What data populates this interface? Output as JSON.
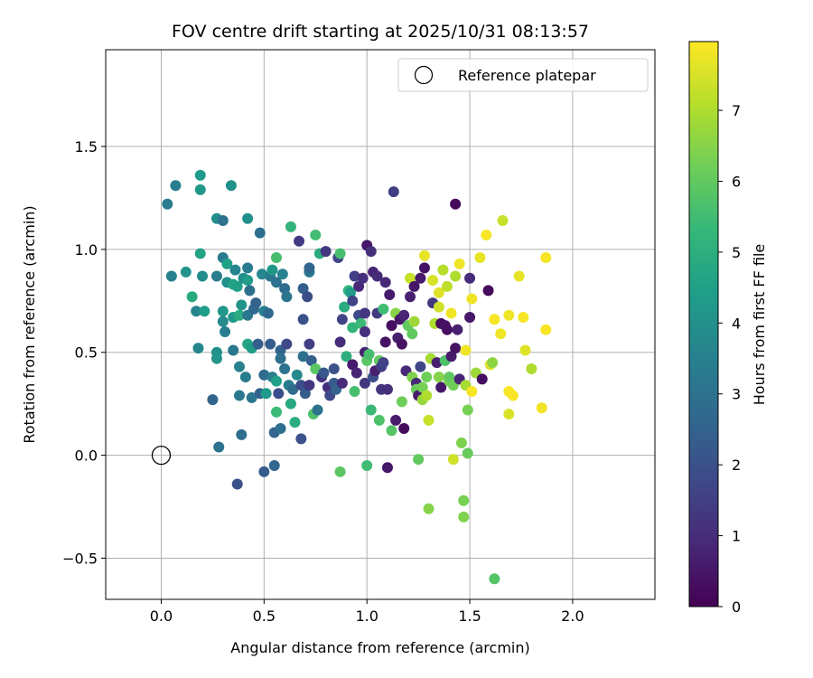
{
  "chart_data": {
    "type": "scatter",
    "title": "FOV centre drift starting at 2025/10/31 08:13:57",
    "xlabel": "Angular distance from reference (arcmin)",
    "ylabel": "Rotation from reference (arcmin)",
    "xlim": [
      -0.27,
      2.4
    ],
    "ylim": [
      -0.7,
      1.97
    ],
    "xticks": [
      0.0,
      0.5,
      1.0,
      1.5,
      2.0
    ],
    "xtick_labels": [
      "0.0",
      "0.5",
      "1.0",
      "1.5",
      "2.0"
    ],
    "yticks": [
      -0.5,
      0.0,
      0.5,
      1.0,
      1.5
    ],
    "ytick_labels": [
      "−0.5",
      "0.0",
      "0.5",
      "1.0",
      "1.5"
    ],
    "grid": true,
    "legend": {
      "position": "top-right",
      "entries": [
        "Reference platepar"
      ]
    },
    "reference_point": {
      "x": 0.0,
      "y": 0.0,
      "label": "Reference platepar"
    },
    "colorbar": {
      "label": "Hours from first FF file",
      "range": [
        0,
        7.97
      ],
      "ticks": [
        0,
        1,
        2,
        3,
        4,
        5,
        6,
        7
      ],
      "tick_labels": [
        "0",
        "1",
        "2",
        "3",
        "4",
        "5",
        "6",
        "7"
      ],
      "colormap": "viridis"
    },
    "colormap_stops": [
      "#440154",
      "#482878",
      "#3e4989",
      "#31688e",
      "#26828e",
      "#1f9e89",
      "#35b779",
      "#6ece58",
      "#b5de2b",
      "#fde725"
    ],
    "points": [
      {
        "x": 0.03,
        "y": 1.22,
        "t": 3.3
      },
      {
        "x": 0.07,
        "y": 1.31,
        "t": 3.4
      },
      {
        "x": 0.05,
        "y": 0.87,
        "t": 3.5
      },
      {
        "x": 0.12,
        "y": 0.89,
        "t": 4.1
      },
      {
        "x": 0.15,
        "y": 0.77,
        "t": 4.8
      },
      {
        "x": 0.19,
        "y": 1.36,
        "t": 4.3
      },
      {
        "x": 0.19,
        "y": 1.29,
        "t": 4.2
      },
      {
        "x": 0.19,
        "y": 0.98,
        "t": 4.6
      },
      {
        "x": 0.2,
        "y": 0.87,
        "t": 3.9
      },
      {
        "x": 0.17,
        "y": 0.7,
        "t": 3.6
      },
      {
        "x": 0.21,
        "y": 0.7,
        "t": 4.4
      },
      {
        "x": 0.18,
        "y": 0.52,
        "t": 3.7
      },
      {
        "x": 0.25,
        "y": 0.27,
        "t": 2.6
      },
      {
        "x": 0.27,
        "y": 1.15,
        "t": 3.9
      },
      {
        "x": 0.27,
        "y": 0.87,
        "t": 3.4
      },
      {
        "x": 0.27,
        "y": 0.5,
        "t": 4.0
      },
      {
        "x": 0.27,
        "y": 0.47,
        "t": 4.1
      },
      {
        "x": 0.28,
        "y": 0.04,
        "t": 3.0
      },
      {
        "x": 0.3,
        "y": 1.14,
        "t": 3.0
      },
      {
        "x": 0.3,
        "y": 0.96,
        "t": 3.3
      },
      {
        "x": 0.3,
        "y": 0.7,
        "t": 4.2
      },
      {
        "x": 0.3,
        "y": 0.65,
        "t": 3.8
      },
      {
        "x": 0.31,
        "y": 0.6,
        "t": 3.4
      },
      {
        "x": 0.32,
        "y": 0.93,
        "t": 4.5
      },
      {
        "x": 0.32,
        "y": 0.84,
        "t": 4.0
      },
      {
        "x": 0.34,
        "y": 1.31,
        "t": 4.0
      },
      {
        "x": 0.35,
        "y": 0.83,
        "t": 4.6
      },
      {
        "x": 0.35,
        "y": 0.67,
        "t": 4.3
      },
      {
        "x": 0.35,
        "y": 0.51,
        "t": 3.2
      },
      {
        "x": 0.36,
        "y": 0.9,
        "t": 3.6
      },
      {
        "x": 0.37,
        "y": 0.82,
        "t": 4.5
      },
      {
        "x": 0.38,
        "y": 0.68,
        "t": 4.9
      },
      {
        "x": 0.37,
        "y": -0.14,
        "t": 2.0
      },
      {
        "x": 0.38,
        "y": 0.43,
        "t": 3.5
      },
      {
        "x": 0.38,
        "y": 0.29,
        "t": 3.2
      },
      {
        "x": 0.39,
        "y": 0.73,
        "t": 4.1
      },
      {
        "x": 0.39,
        "y": 0.1,
        "t": 2.8
      },
      {
        "x": 0.4,
        "y": 0.86,
        "t": 3.9
      },
      {
        "x": 0.41,
        "y": 0.38,
        "t": 3.3
      },
      {
        "x": 0.42,
        "y": 1.15,
        "t": 4.0
      },
      {
        "x": 0.42,
        "y": 0.91,
        "t": 3.3
      },
      {
        "x": 0.42,
        "y": 0.85,
        "t": 4.4
      },
      {
        "x": 0.42,
        "y": 0.68,
        "t": 3.2
      },
      {
        "x": 0.42,
        "y": 0.54,
        "t": 4.7
      },
      {
        "x": 0.43,
        "y": 0.8,
        "t": 2.9
      },
      {
        "x": 0.44,
        "y": 0.52,
        "t": 4.4
      },
      {
        "x": 0.44,
        "y": 0.28,
        "t": 3.1
      },
      {
        "x": 0.45,
        "y": 0.71,
        "t": 2.7
      },
      {
        "x": 0.46,
        "y": 0.74,
        "t": 2.5
      },
      {
        "x": 0.47,
        "y": 0.54,
        "t": 2.4
      },
      {
        "x": 0.48,
        "y": 1.08,
        "t": 2.9
      },
      {
        "x": 0.48,
        "y": 0.3,
        "t": 2.5
      },
      {
        "x": 0.49,
        "y": 0.88,
        "t": 3.7
      },
      {
        "x": 0.5,
        "y": 0.7,
        "t": 3.5
      },
      {
        "x": 0.5,
        "y": 0.39,
        "t": 2.8
      },
      {
        "x": 0.5,
        "y": -0.08,
        "t": 2.3
      },
      {
        "x": 0.51,
        "y": 0.3,
        "t": 4.3
      },
      {
        "x": 0.52,
        "y": 0.69,
        "t": 2.7
      },
      {
        "x": 0.53,
        "y": 0.87,
        "t": 3.2
      },
      {
        "x": 0.53,
        "y": 0.54,
        "t": 2.3
      },
      {
        "x": 0.54,
        "y": 0.9,
        "t": 4.2
      },
      {
        "x": 0.54,
        "y": 0.38,
        "t": 3.4
      },
      {
        "x": 0.55,
        "y": 0.11,
        "t": 2.6
      },
      {
        "x": 0.55,
        "y": -0.05,
        "t": 2.6
      },
      {
        "x": 0.56,
        "y": 0.96,
        "t": 5.6
      },
      {
        "x": 0.56,
        "y": 0.84,
        "t": 3.0
      },
      {
        "x": 0.56,
        "y": 0.36,
        "t": 4.5
      },
      {
        "x": 0.56,
        "y": 0.21,
        "t": 5.4
      },
      {
        "x": 0.57,
        "y": 0.3,
        "t": 1.9
      },
      {
        "x": 0.58,
        "y": 0.51,
        "t": 2.5
      },
      {
        "x": 0.58,
        "y": 0.47,
        "t": 2.9
      },
      {
        "x": 0.58,
        "y": 0.13,
        "t": 2.9
      },
      {
        "x": 0.59,
        "y": 0.88,
        "t": 3.5
      },
      {
        "x": 0.6,
        "y": 0.81,
        "t": 2.8
      },
      {
        "x": 0.6,
        "y": 0.42,
        "t": 3.0
      },
      {
        "x": 0.61,
        "y": 0.77,
        "t": 3.1
      },
      {
        "x": 0.61,
        "y": 0.54,
        "t": 1.8
      },
      {
        "x": 0.62,
        "y": 0.34,
        "t": 3.4
      },
      {
        "x": 0.63,
        "y": 1.11,
        "t": 5.2
      },
      {
        "x": 0.63,
        "y": 0.25,
        "t": 4.8
      },
      {
        "x": 0.64,
        "y": 0.32,
        "t": 2.8
      },
      {
        "x": 0.65,
        "y": 0.16,
        "t": 4.9
      },
      {
        "x": 0.66,
        "y": 0.39,
        "t": 3.8
      },
      {
        "x": 0.67,
        "y": 1.04,
        "t": 1.4
      },
      {
        "x": 0.68,
        "y": 0.34,
        "t": 1.9
      },
      {
        "x": 0.68,
        "y": 0.08,
        "t": 2.0
      },
      {
        "x": 0.69,
        "y": 0.81,
        "t": 2.4
      },
      {
        "x": 0.69,
        "y": 0.66,
        "t": 2.0
      },
      {
        "x": 0.69,
        "y": 0.48,
        "t": 2.9
      },
      {
        "x": 0.7,
        "y": 0.3,
        "t": 2.3
      },
      {
        "x": 0.71,
        "y": 0.77,
        "t": 1.9
      },
      {
        "x": 0.72,
        "y": 0.89,
        "t": 3.2
      },
      {
        "x": 0.72,
        "y": 0.91,
        "t": 2.6
      },
      {
        "x": 0.72,
        "y": 0.54,
        "t": 1.5
      },
      {
        "x": 0.72,
        "y": 0.34,
        "t": 1.3
      },
      {
        "x": 0.73,
        "y": 0.46,
        "t": 2.4
      },
      {
        "x": 0.74,
        "y": 0.2,
        "t": 5.7
      },
      {
        "x": 0.75,
        "y": 1.07,
        "t": 5.5
      },
      {
        "x": 0.75,
        "y": 0.42,
        "t": 5.9
      },
      {
        "x": 0.76,
        "y": 0.22,
        "t": 3.0
      },
      {
        "x": 0.77,
        "y": 0.98,
        "t": 4.9
      },
      {
        "x": 0.78,
        "y": 0.38,
        "t": 1.2
      },
      {
        "x": 0.79,
        "y": 0.4,
        "t": 2.2
      },
      {
        "x": 0.8,
        "y": 0.99,
        "t": 1.3
      },
      {
        "x": 0.81,
        "y": 0.33,
        "t": 1.1
      },
      {
        "x": 0.82,
        "y": 0.29,
        "t": 1.8
      },
      {
        "x": 0.84,
        "y": 0.42,
        "t": 2.0
      },
      {
        "x": 0.84,
        "y": 0.35,
        "t": 2.3
      },
      {
        "x": 0.85,
        "y": 0.32,
        "t": 2.5
      },
      {
        "x": 0.86,
        "y": 0.96,
        "t": 1.7
      },
      {
        "x": 0.87,
        "y": 0.98,
        "t": 5.6
      },
      {
        "x": 0.87,
        "y": 0.55,
        "t": 1.0
      },
      {
        "x": 0.87,
        "y": -0.08,
        "t": 5.9
      },
      {
        "x": 0.88,
        "y": 0.66,
        "t": 1.6
      },
      {
        "x": 0.88,
        "y": 0.35,
        "t": 1.0
      },
      {
        "x": 0.89,
        "y": 0.72,
        "t": 4.9
      },
      {
        "x": 0.9,
        "y": 0.48,
        "t": 5.0
      },
      {
        "x": 0.91,
        "y": 0.8,
        "t": 5.3
      },
      {
        "x": 0.92,
        "y": 0.79,
        "t": 4.4
      },
      {
        "x": 0.93,
        "y": 0.75,
        "t": 1.6
      },
      {
        "x": 0.93,
        "y": 0.62,
        "t": 5.2
      },
      {
        "x": 0.93,
        "y": 0.44,
        "t": 0.6
      },
      {
        "x": 0.94,
        "y": 0.87,
        "t": 1.5
      },
      {
        "x": 0.94,
        "y": 0.31,
        "t": 5.6
      },
      {
        "x": 0.95,
        "y": 0.4,
        "t": 0.8
      },
      {
        "x": 0.96,
        "y": 0.82,
        "t": 0.9
      },
      {
        "x": 0.96,
        "y": 0.68,
        "t": 1.8
      },
      {
        "x": 0.97,
        "y": 0.64,
        "t": 5.4
      },
      {
        "x": 0.98,
        "y": 0.86,
        "t": 1.1
      },
      {
        "x": 0.99,
        "y": 0.6,
        "t": 1.1
      },
      {
        "x": 0.99,
        "y": 0.5,
        "t": 0.8
      },
      {
        "x": 0.99,
        "y": 0.35,
        "t": 1.3
      },
      {
        "x": 0.99,
        "y": 0.69,
        "t": 1.3
      },
      {
        "x": 1.0,
        "y": 1.02,
        "t": 0.5
      },
      {
        "x": 1.0,
        "y": 0.46,
        "t": 5.9
      },
      {
        "x": 1.0,
        "y": -0.05,
        "t": 5.5
      },
      {
        "x": 1.01,
        "y": 0.49,
        "t": 5.6
      },
      {
        "x": 1.02,
        "y": 0.99,
        "t": 1.1
      },
      {
        "x": 1.02,
        "y": 0.22,
        "t": 5.4
      },
      {
        "x": 1.03,
        "y": 0.89,
        "t": 0.8
      },
      {
        "x": 1.03,
        "y": 0.38,
        "t": 1.9
      },
      {
        "x": 1.04,
        "y": 0.41,
        "t": 0.7
      },
      {
        "x": 1.05,
        "y": 0.87,
        "t": 1.0
      },
      {
        "x": 1.05,
        "y": 0.69,
        "t": 1.4
      },
      {
        "x": 1.06,
        "y": 0.46,
        "t": 6.0
      },
      {
        "x": 1.06,
        "y": 0.17,
        "t": 5.7
      },
      {
        "x": 1.07,
        "y": 0.43,
        "t": 1.4
      },
      {
        "x": 1.07,
        "y": 0.32,
        "t": 1.2
      },
      {
        "x": 1.08,
        "y": 0.71,
        "t": 5.5
      },
      {
        "x": 1.08,
        "y": 0.45,
        "t": 1.6
      },
      {
        "x": 1.09,
        "y": 0.84,
        "t": 0.9
      },
      {
        "x": 1.09,
        "y": 0.55,
        "t": 0.4
      },
      {
        "x": 1.1,
        "y": 0.32,
        "t": 1.1
      },
      {
        "x": 1.1,
        "y": -0.06,
        "t": 0.5
      },
      {
        "x": 1.11,
        "y": 0.78,
        "t": 0.6
      },
      {
        "x": 1.12,
        "y": 0.63,
        "t": 0.3
      },
      {
        "x": 1.12,
        "y": 0.12,
        "t": 5.8
      },
      {
        "x": 1.13,
        "y": 1.28,
        "t": 1.5
      },
      {
        "x": 1.14,
        "y": 0.69,
        "t": 6.5
      },
      {
        "x": 1.14,
        "y": 0.17,
        "t": 0.6
      },
      {
        "x": 1.15,
        "y": 0.57,
        "t": 0.7
      },
      {
        "x": 1.16,
        "y": 0.66,
        "t": 0.5
      },
      {
        "x": 1.17,
        "y": 0.26,
        "t": 6.2
      },
      {
        "x": 1.17,
        "y": 0.54,
        "t": 0.4
      },
      {
        "x": 1.18,
        "y": 0.68,
        "t": 0.8
      },
      {
        "x": 1.18,
        "y": 0.13,
        "t": 0.2
      },
      {
        "x": 1.19,
        "y": 0.41,
        "t": 0.9
      },
      {
        "x": 1.2,
        "y": 0.63,
        "t": 6.0
      },
      {
        "x": 1.21,
        "y": 0.77,
        "t": 0.7
      },
      {
        "x": 1.21,
        "y": 0.86,
        "t": 7.3
      },
      {
        "x": 1.22,
        "y": 0.38,
        "t": 6.4
      },
      {
        "x": 1.22,
        "y": 0.59,
        "t": 6.0
      },
      {
        "x": 1.23,
        "y": 0.82,
        "t": 0.5
      },
      {
        "x": 1.23,
        "y": 0.65,
        "t": 6.8
      },
      {
        "x": 1.24,
        "y": 0.35,
        "t": 0.9
      },
      {
        "x": 1.24,
        "y": 0.32,
        "t": 6.1
      },
      {
        "x": 1.25,
        "y": 0.29,
        "t": 0.6
      },
      {
        "x": 1.25,
        "y": -0.02,
        "t": 6.0
      },
      {
        "x": 1.26,
        "y": 0.86,
        "t": 0.6
      },
      {
        "x": 1.26,
        "y": 0.43,
        "t": 1.7
      },
      {
        "x": 1.27,
        "y": 0.27,
        "t": 6.7
      },
      {
        "x": 1.27,
        "y": 0.33,
        "t": 6.3
      },
      {
        "x": 1.28,
        "y": 0.97,
        "t": 7.7
      },
      {
        "x": 1.28,
        "y": 0.91,
        "t": 0.4
      },
      {
        "x": 1.29,
        "y": 0.29,
        "t": 7.0
      },
      {
        "x": 1.29,
        "y": 0.38,
        "t": 6.2
      },
      {
        "x": 1.3,
        "y": 0.17,
        "t": 7.3
      },
      {
        "x": 1.3,
        "y": -0.26,
        "t": 6.5
      },
      {
        "x": 1.31,
        "y": 0.47,
        "t": 6.9
      },
      {
        "x": 1.32,
        "y": 0.85,
        "t": 7.5
      },
      {
        "x": 1.32,
        "y": 0.74,
        "t": 1.3
      },
      {
        "x": 1.33,
        "y": 0.64,
        "t": 7.0
      },
      {
        "x": 1.34,
        "y": 0.45,
        "t": 0.7
      },
      {
        "x": 1.35,
        "y": 0.79,
        "t": 7.6
      },
      {
        "x": 1.35,
        "y": 0.72,
        "t": 7.4
      },
      {
        "x": 1.35,
        "y": 0.38,
        "t": 6.5
      },
      {
        "x": 1.36,
        "y": 0.33,
        "t": 0.5
      },
      {
        "x": 1.36,
        "y": 0.64,
        "t": 0.2
      },
      {
        "x": 1.37,
        "y": 0.9,
        "t": 7.1
      },
      {
        "x": 1.38,
        "y": 0.63,
        "t": 0.4
      },
      {
        "x": 1.38,
        "y": 0.46,
        "t": 5.7
      },
      {
        "x": 1.39,
        "y": 0.82,
        "t": 7.2
      },
      {
        "x": 1.39,
        "y": 0.61,
        "t": 0.3
      },
      {
        "x": 1.4,
        "y": 0.36,
        "t": 6.3
      },
      {
        "x": 1.4,
        "y": 0.38,
        "t": 6.0
      },
      {
        "x": 1.41,
        "y": 0.69,
        "t": 7.8
      },
      {
        "x": 1.41,
        "y": 0.48,
        "t": 0.6
      },
      {
        "x": 1.42,
        "y": 0.34,
        "t": 6.2
      },
      {
        "x": 1.42,
        "y": -0.02,
        "t": 7.4
      },
      {
        "x": 1.43,
        "y": 1.22,
        "t": 0.2
      },
      {
        "x": 1.43,
        "y": 0.87,
        "t": 7.0
      },
      {
        "x": 1.43,
        "y": 0.52,
        "t": 0.4
      },
      {
        "x": 1.44,
        "y": 0.61,
        "t": 0.7
      },
      {
        "x": 1.45,
        "y": 0.93,
        "t": 7.8
      },
      {
        "x": 1.45,
        "y": 0.37,
        "t": 0.8
      },
      {
        "x": 1.46,
        "y": 0.06,
        "t": 6.4
      },
      {
        "x": 1.47,
        "y": -0.22,
        "t": 6.3
      },
      {
        "x": 1.47,
        "y": -0.3,
        "t": 6.4
      },
      {
        "x": 1.48,
        "y": 0.51,
        "t": 7.8
      },
      {
        "x": 1.48,
        "y": 0.34,
        "t": 6.9
      },
      {
        "x": 1.49,
        "y": 0.01,
        "t": 6.1
      },
      {
        "x": 1.49,
        "y": 0.22,
        "t": 6.3
      },
      {
        "x": 1.5,
        "y": 0.86,
        "t": 1.0
      },
      {
        "x": 1.5,
        "y": 0.67,
        "t": 0.5
      },
      {
        "x": 1.51,
        "y": 0.31,
        "t": 7.9
      },
      {
        "x": 1.51,
        "y": 0.76,
        "t": 7.8
      },
      {
        "x": 1.53,
        "y": 0.4,
        "t": 6.8
      },
      {
        "x": 1.55,
        "y": 0.96,
        "t": 7.7
      },
      {
        "x": 1.56,
        "y": 0.37,
        "t": 0.3
      },
      {
        "x": 1.58,
        "y": 1.07,
        "t": 7.9
      },
      {
        "x": 1.59,
        "y": 0.8,
        "t": 0.2
      },
      {
        "x": 1.6,
        "y": 0.44,
        "t": 7.6
      },
      {
        "x": 1.61,
        "y": 0.45,
        "t": 6.6
      },
      {
        "x": 1.62,
        "y": 0.66,
        "t": 7.9
      },
      {
        "x": 1.62,
        "y": -0.6,
        "t": 5.8
      },
      {
        "x": 1.65,
        "y": 0.59,
        "t": 7.8
      },
      {
        "x": 1.66,
        "y": 1.14,
        "t": 7.3
      },
      {
        "x": 1.69,
        "y": 0.68,
        "t": 7.8
      },
      {
        "x": 1.69,
        "y": 0.31,
        "t": 7.9
      },
      {
        "x": 1.69,
        "y": 0.2,
        "t": 7.5
      },
      {
        "x": 1.71,
        "y": 0.29,
        "t": 7.9
      },
      {
        "x": 1.74,
        "y": 0.87,
        "t": 7.7
      },
      {
        "x": 1.76,
        "y": 0.67,
        "t": 7.9
      },
      {
        "x": 1.77,
        "y": 0.51,
        "t": 7.6
      },
      {
        "x": 1.8,
        "y": 0.42,
        "t": 7.0
      },
      {
        "x": 1.85,
        "y": 0.23,
        "t": 7.8
      },
      {
        "x": 1.87,
        "y": 0.96,
        "t": 7.9
      },
      {
        "x": 1.87,
        "y": 0.61,
        "t": 7.9
      }
    ]
  }
}
